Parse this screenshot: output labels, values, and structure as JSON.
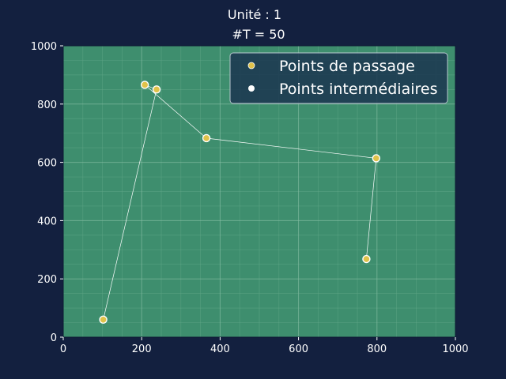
{
  "chart_data": {
    "type": "scatter",
    "title": "Unité : 1",
    "subtitle": "#T = 50",
    "xlabel": "",
    "ylabel": "",
    "xlim": [
      0,
      1000
    ],
    "ylim": [
      0,
      1000
    ],
    "xticks": [
      0,
      200,
      400,
      600,
      800,
      1000
    ],
    "yticks": [
      0,
      200,
      400,
      600,
      800,
      1000
    ],
    "grid": true,
    "legend_position": "top-right",
    "colors": {
      "page_background": "#13203f",
      "plot_background": "#3e8e6e",
      "grid_major": "#8cc2a8",
      "grid_minor": "#63a888",
      "waypoint_fill": "#e0c24a",
      "intermediate_fill": "#ffffff",
      "path_line": "#ffffff",
      "legend_background": "#1b3550"
    },
    "series": [
      {
        "name": "Points de passage",
        "marker_color": "#e0c24a",
        "points": [
          [
            102,
            60
          ],
          [
            238,
            850
          ],
          [
            208,
            866
          ],
          [
            365,
            683
          ],
          [
            798,
            614
          ],
          [
            773,
            268
          ]
        ]
      },
      {
        "name": "Points intermédiaires",
        "marker_color": "#ffffff",
        "points": []
      }
    ],
    "path": [
      [
        102,
        60
      ],
      [
        238,
        850
      ],
      [
        208,
        866
      ],
      [
        365,
        683
      ],
      [
        798,
        614
      ],
      [
        773,
        268
      ]
    ]
  }
}
